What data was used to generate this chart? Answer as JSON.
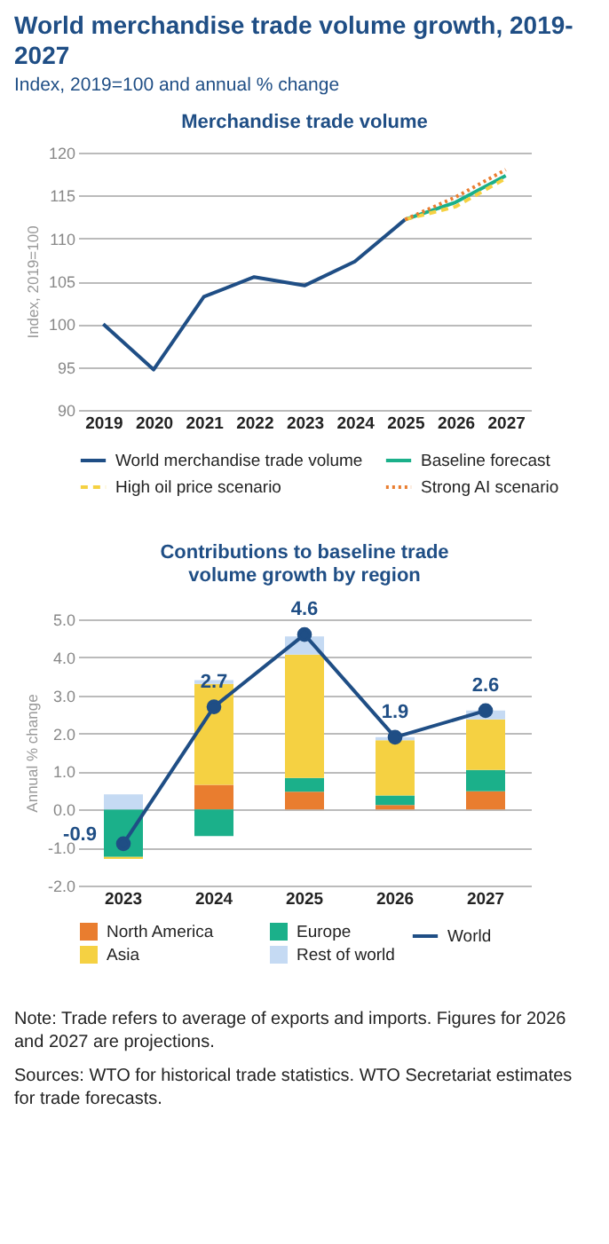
{
  "chart_data": [
    {
      "type": "line",
      "title": "Merchandise trade volume",
      "ylabel": "Index, 2019=100",
      "annotations": [
        "World merchandise trade volume growth, 2019-2027",
        "Index, 2019=100 and annual % change"
      ],
      "categories": [
        "2019",
        "2020",
        "2021",
        "2022",
        "2023",
        "2024",
        "2025",
        "2026",
        "2027"
      ],
      "series": [
        {
          "name": "World merchandise trade volume",
          "color": "#1f4e85",
          "line_style": "solid",
          "values": [
            100,
            94.7,
            103.2,
            105.5,
            104.5,
            107.3,
            112.2,
            null,
            null
          ]
        },
        {
          "name": "Baseline forecast",
          "color": "#1bb08a",
          "line_style": "solid",
          "values": [
            null,
            null,
            null,
            null,
            null,
            null,
            112.2,
            114.2,
            117.3
          ]
        },
        {
          "name": "High oil price scenario",
          "color": "#f5d142",
          "line_style": "dashed",
          "values": [
            null,
            null,
            null,
            null,
            null,
            null,
            112.2,
            113.7,
            117.0
          ]
        },
        {
          "name": "Strong AI scenario",
          "color": "#e97d2f",
          "line_style": "dotted",
          "values": [
            null,
            null,
            null,
            null,
            null,
            null,
            112.2,
            114.8,
            118.0
          ]
        }
      ],
      "ylim": [
        90,
        120
      ],
      "yticks": [
        90,
        95,
        100,
        105,
        110,
        115,
        120
      ],
      "grid": "y",
      "legend": "bottom"
    },
    {
      "type": "bar",
      "title": "Contributions to baseline trade volume growth by region",
      "ylabel": "Annual % change",
      "stacked": true,
      "annotations": [
        "Note: Trade refers to average of exports and imports. Figures for 2026 and 2027 are projections.",
        "Sources: WTO for historical trade statistics. WTO Secretariat estimates for trade forecasts."
      ],
      "categories": [
        "2023",
        "2024",
        "2025",
        "2026",
        "2027"
      ],
      "series": [
        {
          "name": "North America",
          "color": "#e97d2f",
          "values": [
            0,
            0.65,
            0.47,
            0.12,
            0.48
          ]
        },
        {
          "name": "Europe",
          "color": "#1bb08a",
          "values": [
            -1.25,
            -0.7,
            0.36,
            0.25,
            0.56
          ]
        },
        {
          "name": "Asia",
          "color": "#f5d142",
          "values": [
            -0.05,
            2.65,
            3.24,
            1.45,
            1.33
          ]
        },
        {
          "name": "Rest of world",
          "color": "#c5daf3",
          "values": [
            0.4,
            0.1,
            0.48,
            0.08,
            0.23
          ]
        },
        {
          "name": "World",
          "type": "line",
          "color": "#1f4e85",
          "marker": "circle",
          "values": [
            -0.9,
            2.7,
            4.6,
            1.9,
            2.6
          ],
          "value_labels": [
            "-0.9",
            "2.7",
            "4.6",
            "1.9",
            "2.6"
          ]
        }
      ],
      "ylim": [
        -2,
        5
      ],
      "yticks": [
        {
          "value": -2,
          "label": "-2.0"
        },
        {
          "value": -1,
          "label": "-1.0"
        },
        {
          "value": 0,
          "label": "0.0"
        },
        {
          "value": 1,
          "label": "1.0"
        },
        {
          "value": 2,
          "label": "2.0"
        },
        {
          "value": 3,
          "label": "3.0"
        },
        {
          "value": 4,
          "label": "4.0"
        },
        {
          "value": 5,
          "label": "5.0"
        }
      ],
      "grid": "y",
      "legend": "bottom"
    }
  ]
}
